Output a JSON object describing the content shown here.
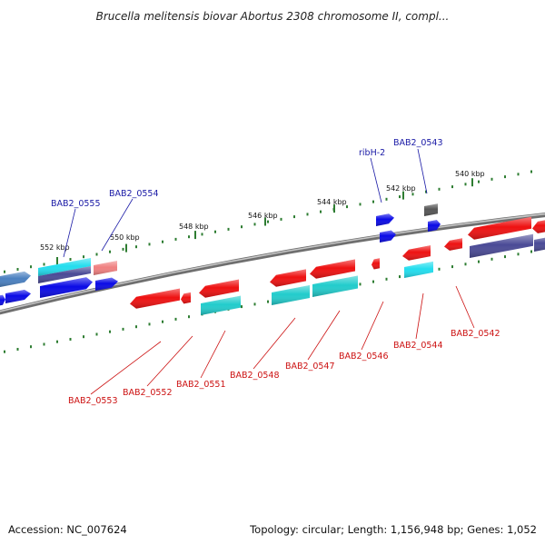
{
  "title": "Brucella melitensis biovar Abortus 2308 chromosome II, compl...",
  "footer": {
    "accession": "Accession: NC_007624",
    "summary": "Topology: circular; Length: 1,156,948 bp; Genes: 1,052"
  },
  "scale_labels": [
    "552 kbp",
    "550 kbp",
    "548 kbp",
    "546 kbp",
    "544 kbp",
    "542 kbp",
    "540 kbp"
  ],
  "gene_labels": {
    "top": [
      "BAB2_0555",
      "BAB2_0554",
      "ribH-2",
      "BAB2_0543"
    ],
    "bottom": [
      "BAB2_0553",
      "BAB2_0552",
      "BAB2_0551",
      "BAB2_0548",
      "BAB2_0547",
      "BAB2_0546",
      "BAB2_0544",
      "BAB2_0542"
    ]
  },
  "colors": {
    "forward_label": "#1a1aa6",
    "reverse_label": "#cc1111",
    "backbone": "#8a8a8a",
    "ticks": "#2e7d32",
    "red": "#ee1111",
    "pink": "#f08080",
    "blue": "#0a0ae6",
    "cyan": "#22cccc",
    "bright_cyan": "#22ddee",
    "steel": "#4a80c0",
    "navy": "#4a4a96",
    "grey": "#555555"
  }
}
